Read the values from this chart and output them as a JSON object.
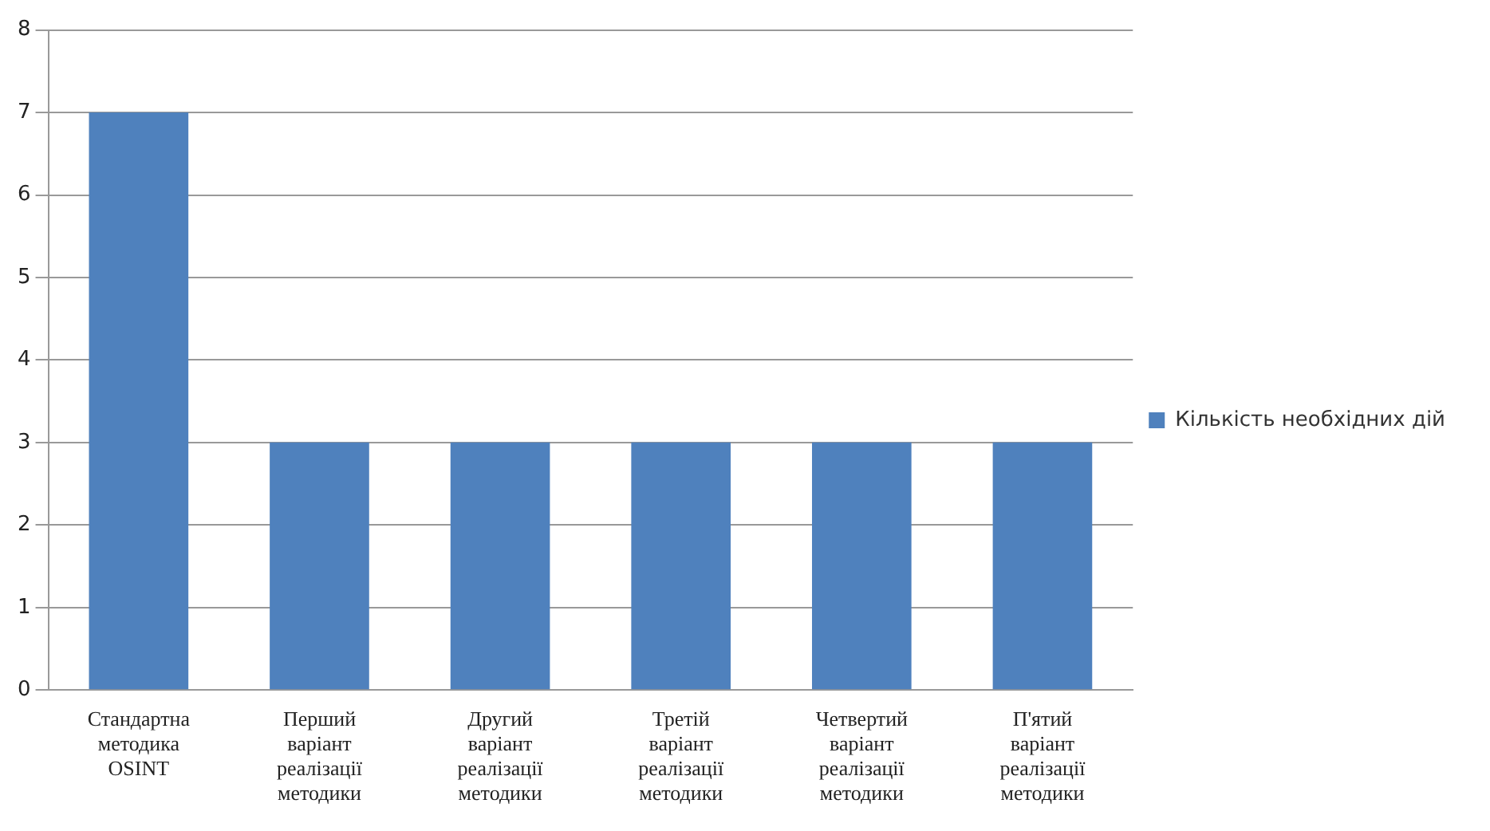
{
  "chart_data": {
    "type": "bar",
    "categories": [
      "Стандартна методика OSINT",
      "Перший варіант реалізації методики",
      "Другий варіант реалізації методики",
      "Третій варіант реалізації методики",
      "Четвертий варіант реалізації методики",
      "П'ятий варіант реалізації методики"
    ],
    "series": [
      {
        "name": "Кількість необхідних дій",
        "color": "#4f81bd",
        "values": [
          7,
          3,
          3,
          3,
          3,
          3
        ]
      }
    ],
    "ylim": [
      0,
      8
    ],
    "yticks": [
      0,
      1,
      2,
      3,
      4,
      5,
      6,
      7,
      8
    ],
    "grid": "y",
    "legend": "right"
  }
}
